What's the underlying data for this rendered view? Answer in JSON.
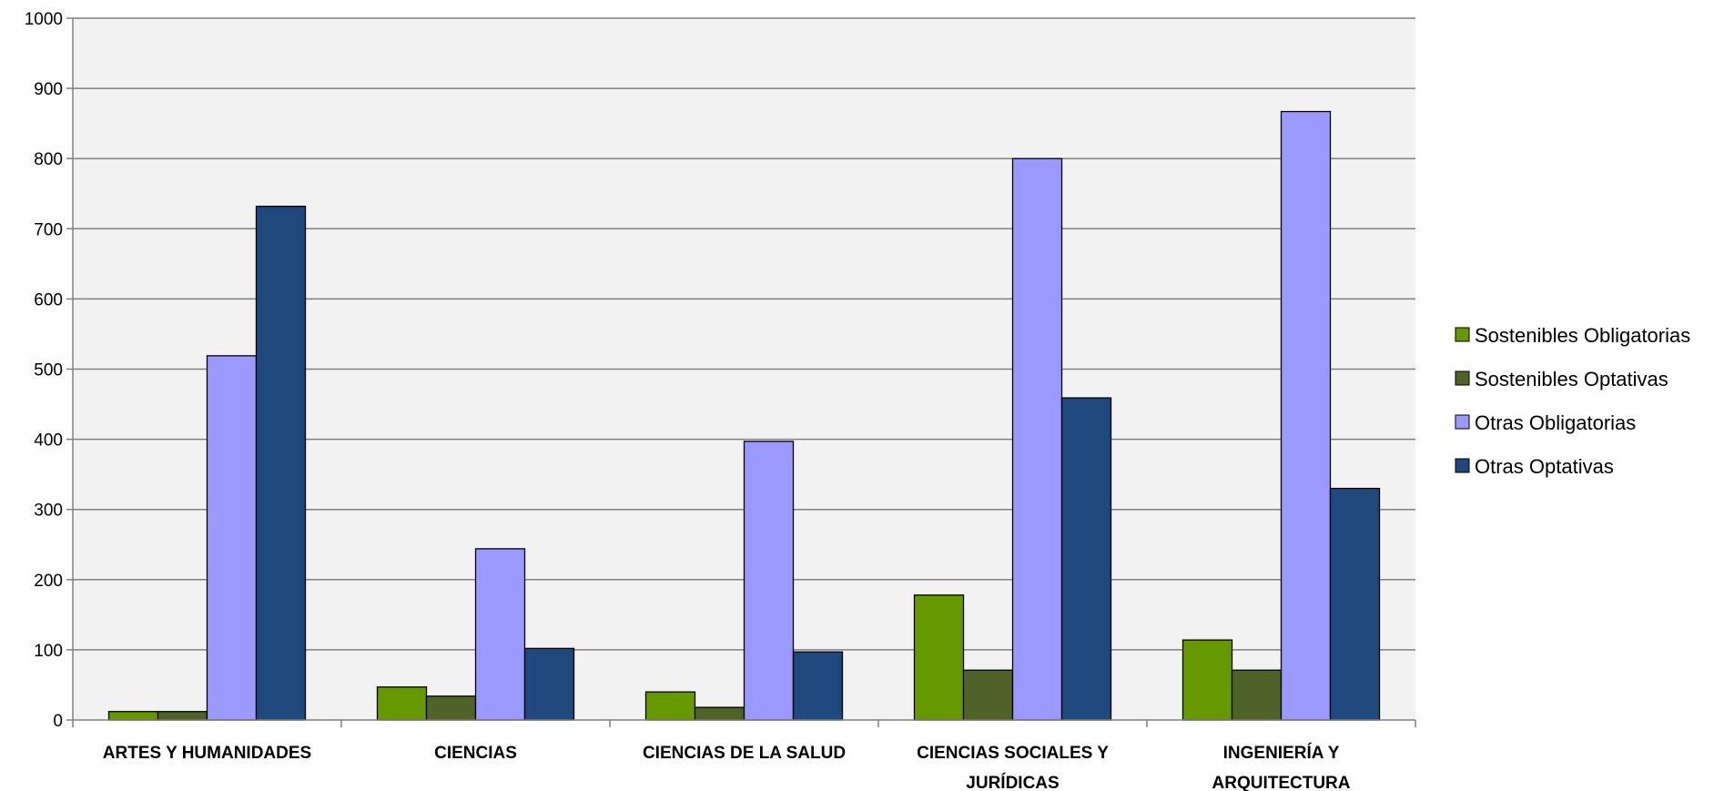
{
  "chart_data": {
    "type": "bar",
    "title": "",
    "xlabel": "",
    "ylabel": "",
    "ylim": [
      0,
      1000
    ],
    "yticks": [
      0,
      100,
      200,
      300,
      400,
      500,
      600,
      700,
      800,
      900,
      1000
    ],
    "grid": true,
    "legend_position": "right",
    "categories": [
      [
        "ARTES Y HUMANIDADES"
      ],
      [
        "CIENCIAS"
      ],
      [
        "CIENCIAS DE LA SALUD"
      ],
      [
        "CIENCIAS SOCIALES Y",
        "JURÍDICAS"
      ],
      [
        "INGENIERÍA Y",
        "ARQUITECTURA"
      ]
    ],
    "series": [
      {
        "name": "Sostenibles Obligatorias",
        "color": "#669900",
        "values": [
          12,
          47,
          40,
          178,
          114
        ]
      },
      {
        "name": "Sostenibles Optativas",
        "color": "#4f6228",
        "values": [
          12,
          34,
          18,
          71,
          71
        ]
      },
      {
        "name": "Otras Obligatorias",
        "color": "#9999ff",
        "values": [
          519,
          244,
          397,
          800,
          867
        ]
      },
      {
        "name": "Otras Optativas",
        "color": "#1f497d",
        "values": [
          732,
          102,
          97,
          459,
          330
        ]
      }
    ],
    "plot_background": "#f2f2f2",
    "gridline_color": "#808080"
  }
}
